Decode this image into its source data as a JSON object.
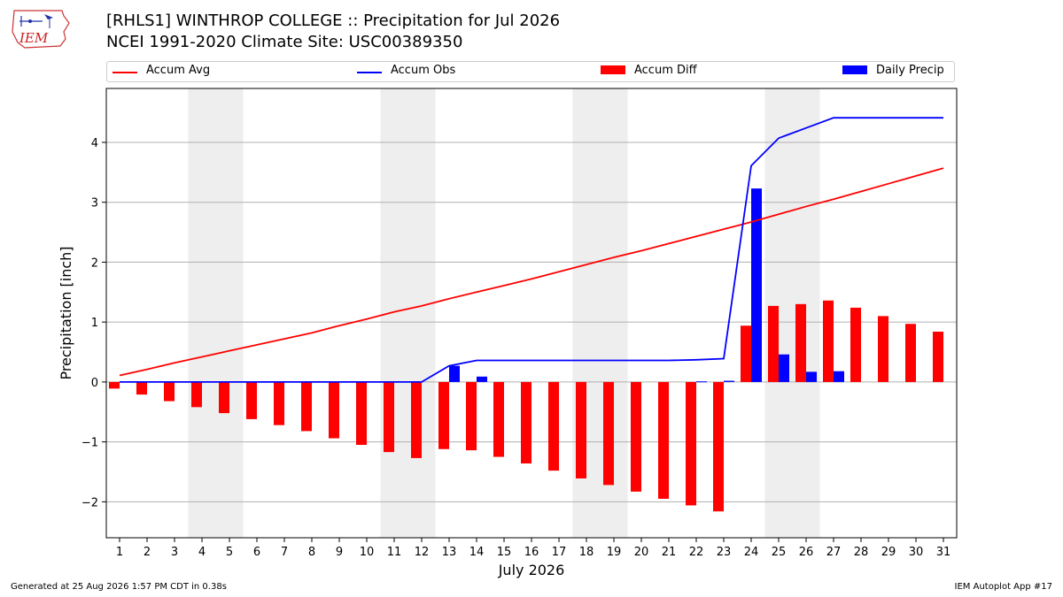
{
  "logo": {
    "text": "IEM"
  },
  "header": {
    "title": "[RHLS1] WINTHROP COLLEGE :: Precipitation for Jul 2026",
    "subtitle": "NCEI 1991-2020 Climate Site: USC00389350"
  },
  "footer": {
    "generated": "Generated at 25 Aug 2026 1:57 PM CDT in 0.38s",
    "app": "IEM Autoplot App #17"
  },
  "colors": {
    "avg": "#ff0000",
    "obs": "#0000ff",
    "diff": "#ff0000",
    "daily": "#0000ff",
    "weekend": "#eeeeee"
  },
  "chart_data": {
    "type": "bar",
    "xlabel": "July 2026",
    "ylabel": "Precipitation [inch]",
    "ylim": [
      -2.6,
      4.9
    ],
    "yticks": [
      -2,
      -1,
      0,
      1,
      2,
      3,
      4
    ],
    "ytick_labels": [
      "−2",
      "−1",
      "0",
      "1",
      "2",
      "3",
      "4"
    ],
    "grid": "horizontal",
    "legend_position": "top",
    "days": [
      1,
      2,
      3,
      4,
      5,
      6,
      7,
      8,
      9,
      10,
      11,
      12,
      13,
      14,
      15,
      16,
      17,
      18,
      19,
      20,
      21,
      22,
      23,
      24,
      25,
      26,
      27,
      28,
      29,
      30,
      31
    ],
    "day_labels": [
      "1",
      "2",
      "3",
      "4",
      "5",
      "6",
      "7",
      "8",
      "9",
      "10",
      "11",
      "12",
      "13",
      "14",
      "15",
      "16",
      "17",
      "18",
      "19",
      "20",
      "21",
      "22",
      "23",
      "24",
      "25",
      "26",
      "27",
      "28",
      "29",
      "30",
      "31"
    ],
    "weekend_spans": [
      [
        4,
        5
      ],
      [
        11,
        12
      ],
      [
        18,
        19
      ],
      [
        25,
        26
      ]
    ],
    "series": [
      {
        "name": "Accum Avg",
        "kind": "line",
        "values": [
          0.11,
          0.21,
          0.32,
          0.42,
          0.52,
          0.62,
          0.72,
          0.82,
          0.94,
          1.05,
          1.17,
          1.27,
          1.39,
          1.5,
          1.61,
          1.72,
          1.84,
          1.96,
          2.08,
          2.19,
          2.31,
          2.43,
          2.55,
          2.67,
          2.8,
          2.93,
          3.05,
          3.18,
          3.31,
          3.44,
          3.57
        ]
      },
      {
        "name": "Accum Obs",
        "kind": "line",
        "values": [
          0,
          0,
          0,
          0,
          0,
          0,
          0,
          0,
          0,
          0,
          0,
          0,
          0.27,
          0.36,
          0.36,
          0.36,
          0.36,
          0.36,
          0.36,
          0.36,
          0.36,
          0.37,
          0.39,
          3.61,
          4.07,
          4.24,
          4.41,
          4.41,
          4.41,
          4.41,
          4.41
        ]
      },
      {
        "name": "Accum Diff",
        "kind": "bar",
        "values": [
          -0.11,
          -0.21,
          -0.32,
          -0.42,
          -0.52,
          -0.62,
          -0.72,
          -0.82,
          -0.94,
          -1.05,
          -1.17,
          -1.27,
          -1.12,
          -1.14,
          -1.25,
          -1.36,
          -1.48,
          -1.61,
          -1.72,
          -1.83,
          -1.95,
          -2.06,
          -2.16,
          0.94,
          1.27,
          1.3,
          1.36,
          1.24,
          1.1,
          0.97,
          0.84
        ]
      },
      {
        "name": "Daily Precip",
        "kind": "bar",
        "values": [
          0,
          0,
          0,
          0,
          0,
          0,
          0,
          0,
          0,
          0,
          0,
          0,
          0.27,
          0.09,
          0,
          0,
          0,
          0,
          0,
          0,
          0,
          0.01,
          0.02,
          3.23,
          0.46,
          0.17,
          0.18,
          0,
          0,
          0,
          0
        ]
      }
    ]
  }
}
